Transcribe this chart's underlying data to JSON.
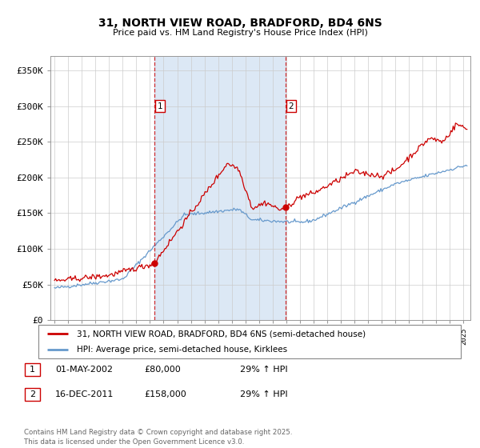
{
  "title": "31, NORTH VIEW ROAD, BRADFORD, BD4 6NS",
  "subtitle": "Price paid vs. HM Land Registry's House Price Index (HPI)",
  "ylabel_ticks": [
    "£0",
    "£50K",
    "£100K",
    "£150K",
    "£200K",
    "£250K",
    "£300K",
    "£350K"
  ],
  "ytick_values": [
    0,
    50000,
    100000,
    150000,
    200000,
    250000,
    300000,
    350000
  ],
  "ylim": [
    0,
    370000
  ],
  "xlim_start": 1994.7,
  "xlim_end": 2025.5,
  "purchase1_x": 2002.33,
  "purchase1_y": 80000,
  "purchase1_label": "1",
  "purchase2_x": 2011.96,
  "purchase2_y": 158000,
  "purchase2_label": "2",
  "red_color": "#cc0000",
  "blue_color": "#6699cc",
  "bg_plot": "#ffffff",
  "shade_color": "#dce8f5",
  "grid_color": "#cccccc",
  "legend_line1": "31, NORTH VIEW ROAD, BRADFORD, BD4 6NS (semi-detached house)",
  "legend_line2": "HPI: Average price, semi-detached house, Kirklees",
  "table_row1": [
    "1",
    "01-MAY-2002",
    "£80,000",
    "29% ↑ HPI"
  ],
  "table_row2": [
    "2",
    "16-DEC-2011",
    "£158,000",
    "29% ↑ HPI"
  ],
  "footer": "Contains HM Land Registry data © Crown copyright and database right 2025.\nThis data is licensed under the Open Government Licence v3.0."
}
